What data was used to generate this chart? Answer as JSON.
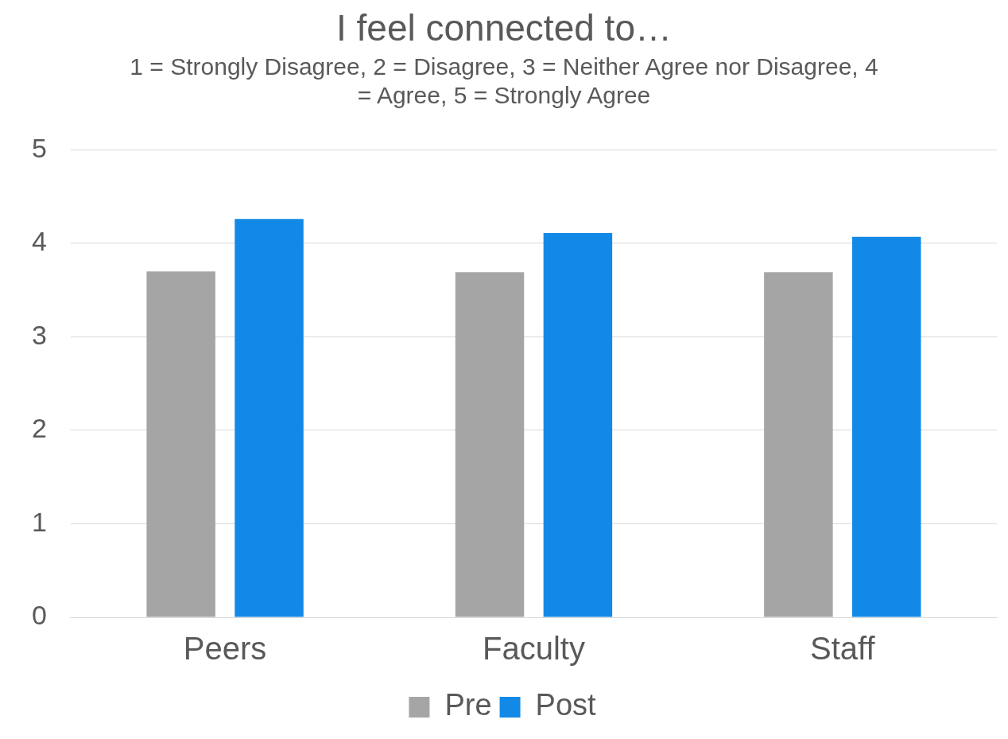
{
  "chart_data": {
    "type": "bar",
    "title": "I feel connected to…",
    "subtitle": "1 = Strongly Disagree, 2 = Disagree, 3 = Neither Agree nor Disagree, 4 = Agree, 5 = Strongly Agree",
    "categories": [
      "Peers",
      "Faculty",
      "Staff"
    ],
    "series": [
      {
        "name": "Pre",
        "color": "#a5a5a5",
        "values": [
          3.7,
          3.69,
          3.69
        ]
      },
      {
        "name": "Post",
        "color": "#1289e6",
        "values": [
          4.26,
          4.11,
          4.07
        ]
      }
    ],
    "ylim": [
      0,
      5
    ],
    "yticks": [
      0,
      1,
      2,
      3,
      4,
      5
    ],
    "grid": "y",
    "legend": "bottom"
  }
}
